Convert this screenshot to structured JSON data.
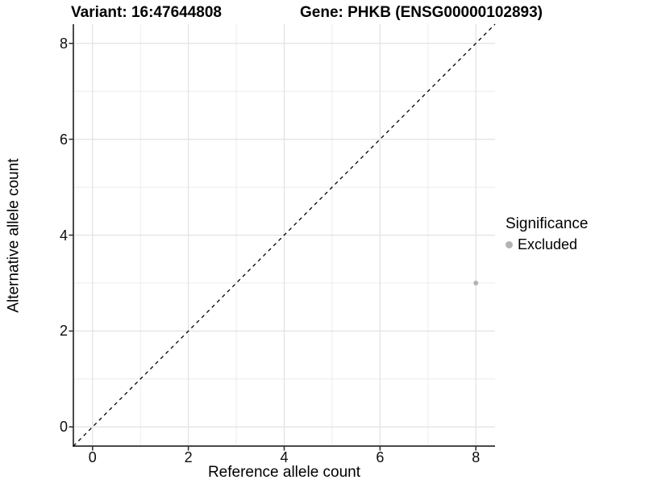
{
  "colors": {
    "background": "#ffffff",
    "grid_major": "#e2e2e2",
    "grid_minor": "#ececec",
    "axis_line": "#4a4a4a",
    "tick_mark": "#333333",
    "text": "#000000",
    "point": "#b3b3b3"
  },
  "chart_data": {
    "type": "scatter",
    "title_left": "Variant: 16:47644808",
    "title_right": "Gene: PHKB (ENSG00000102893)",
    "xlabel": "Reference allele count",
    "ylabel": "Alternative allele count",
    "xlim": [
      -0.4,
      8.4
    ],
    "ylim": [
      -0.4,
      8.4
    ],
    "xticks": [
      0,
      2,
      4,
      6,
      8
    ],
    "yticks": [
      0,
      2,
      4,
      6,
      8
    ],
    "xminor": [
      1,
      3,
      5,
      7
    ],
    "yminor": [
      1,
      3,
      5,
      7
    ],
    "grid": "major+minor",
    "reference_line": {
      "type": "identity",
      "style": "dashed",
      "color": "#000000",
      "from": [
        -0.4,
        -0.4
      ],
      "to": [
        8.4,
        8.4
      ]
    },
    "series": [
      {
        "name": "Excluded",
        "color": "#b3b3b3",
        "points": [
          {
            "x": 8,
            "y": 3
          }
        ]
      }
    ],
    "legend": {
      "title": "Significance",
      "position": "right",
      "items": [
        {
          "label": "Excluded",
          "color": "#b3b3b3"
        }
      ]
    }
  }
}
